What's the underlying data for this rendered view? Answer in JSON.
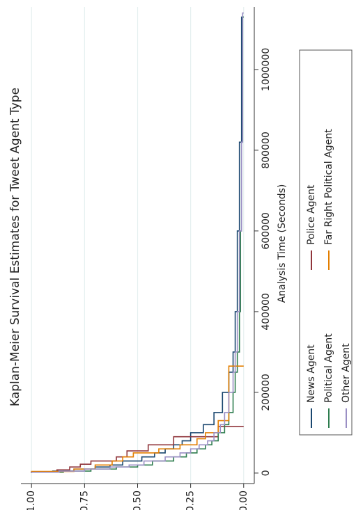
{
  "chart_data": {
    "type": "step",
    "title": "Kaplan-Meier Survival Estimates for Tweet Agent Type",
    "x_label": "Analysis Time (Seconds)",
    "xlim": [
      -26000,
      1155000
    ],
    "xticks": [
      0,
      200000,
      400000,
      600000,
      800000,
      1000000
    ],
    "ylim": [
      -0.05,
      1.05
    ],
    "yticks": [
      {
        "value": 0,
        "label": "0.00"
      },
      {
        "value": 0.25,
        "label": "0.25"
      },
      {
        "value": 0.5,
        "label": "0.50"
      },
      {
        "value": 0.75,
        "label": "0.75"
      },
      {
        "value": 1,
        "label": "1.00"
      }
    ],
    "grid": true,
    "series": [
      {
        "name": "News Agent",
        "color": "#1a476f",
        "x": [
          0,
          2000,
          5000,
          10000,
          15000,
          20000,
          30000,
          40000,
          50000,
          60000,
          70000,
          80000,
          100000,
          120000,
          150000,
          200000,
          250000,
          300000,
          400000,
          600000,
          820000,
          1130000
        ],
        "values": [
          1,
          0.9,
          0.8,
          0.7,
          0.63,
          0.57,
          0.48,
          0.42,
          0.37,
          0.33,
          0.29,
          0.25,
          0.19,
          0.14,
          0.1,
          0.07,
          0.05,
          0.04,
          0.03,
          0.02,
          0.01,
          0
        ]
      },
      {
        "name": "Police Agent",
        "color": "#90353b",
        "x": [
          0,
          3000,
          8000,
          15000,
          22000,
          30000,
          40000,
          55000,
          70000,
          90000,
          115000
        ],
        "values": [
          1,
          0.88,
          0.82,
          0.77,
          0.72,
          0.6,
          0.55,
          0.45,
          0.33,
          0.12,
          0
        ]
      },
      {
        "name": "Political Agent",
        "color": "#2e7d4f",
        "x": [
          0,
          2000,
          5000,
          10000,
          15000,
          20000,
          30000,
          40000,
          50000,
          60000,
          70000,
          80000,
          100000,
          120000,
          150000,
          200000,
          250000,
          300000,
          400000,
          600000,
          820000,
          1130000
        ],
        "values": [
          1,
          0.85,
          0.72,
          0.6,
          0.5,
          0.43,
          0.33,
          0.27,
          0.22,
          0.18,
          0.15,
          0.12,
          0.09,
          0.07,
          0.05,
          0.04,
          0.03,
          0.02,
          0.015,
          0.01,
          0.005,
          0
        ]
      },
      {
        "name": "Far Right Political Agent",
        "color": "#e37e00",
        "x": [
          0,
          4000,
          10000,
          20000,
          30000,
          40000,
          50000,
          60000,
          70000,
          85000,
          100000,
          130000,
          265000
        ],
        "values": [
          1,
          0.8,
          0.7,
          0.62,
          0.57,
          0.52,
          0.4,
          0.3,
          0.22,
          0.18,
          0.12,
          0.07,
          0
        ]
      },
      {
        "name": "Other Agent",
        "color": "#9a8fc4",
        "x": [
          0,
          2000,
          5000,
          10000,
          15000,
          20000,
          30000,
          40000,
          50000,
          60000,
          70000,
          80000,
          100000,
          120000,
          150000,
          200000,
          250000,
          300000,
          400000,
          600000,
          820000,
          1140000
        ],
        "values": [
          1,
          0.87,
          0.75,
          0.63,
          0.54,
          0.47,
          0.37,
          0.3,
          0.25,
          0.21,
          0.17,
          0.14,
          0.11,
          0.09,
          0.07,
          0.05,
          0.04,
          0.03,
          0.02,
          0.01,
          0.005,
          0
        ]
      }
    ]
  }
}
